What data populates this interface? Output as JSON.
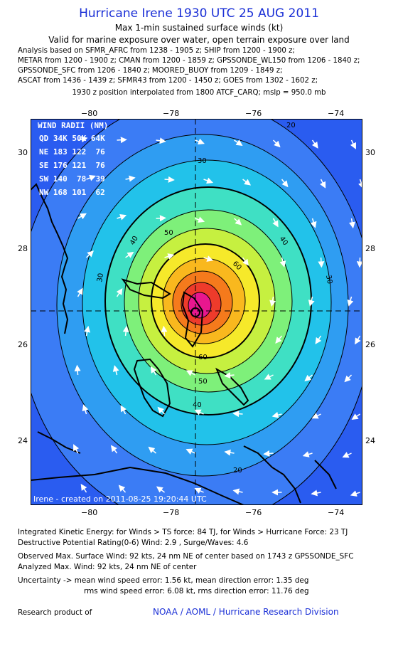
{
  "header": {
    "title": "Hurricane Irene 1930 UTC 25 AUG 2011",
    "subtitle": "Max 1-min sustained surface winds (kt)",
    "valid": "Valid for marine exposure over water, open terrain exposure over land"
  },
  "analysis_lines": [
    "Analysis based on SFMR_AFRC from 1238 - 1905 z; SHIP from 1200 - 1900 z;",
    "METAR from 1200 - 1900 z; CMAN from 1200 - 1859 z; GPSSONDE_WL150 from 1206 - 1840 z;",
    "GPSSONDE_SFC from 1206 - 1840 z; MOORED_BUOY from 1209 - 1849 z;",
    "ASCAT from 1436 - 1439 z; SFMR43 from 1200 - 1450 z; GOES from 1302 - 1602 z;"
  ],
  "interp_note": "1930 z position interpolated from 1800 ATCF_CARQ; mslp = 950.0 mb",
  "map": {
    "lon_ticks": [
      "−80",
      "−78",
      "−76",
      "−74"
    ],
    "lat_ticks": [
      "30",
      "28",
      "26",
      "24"
    ],
    "wind_radii": {
      "title": "WIND RADII (NM)",
      "header": "QD 34K 50K 64K",
      "rows": [
        "NE 183 122  76",
        "SE 176 121  76",
        "SW 140  78  39",
        "NW 168 101  62"
      ]
    },
    "contour_labels": [
      "20",
      "20",
      "30",
      "30",
      "30",
      "40",
      "40",
      "40",
      "50",
      "50",
      "60",
      "60"
    ],
    "credit": "Irene - created on 2011-08-25 19:20:44 UTC",
    "colors": {
      "ocean": "#2a5cf0",
      "land": "#000000",
      "levels": [
        "#3b7cf5",
        "#2f9df2",
        "#22c2ea",
        "#3fe0c4",
        "#7ef07a",
        "#c6f040",
        "#f6e92a",
        "#f9b81e",
        "#f57a1c",
        "#ee3b2b",
        "#e8178f"
      ]
    }
  },
  "footer": {
    "ike": "Integrated Kinetic Energy:  for Winds > TS force: 84 TJ,  for Winds > Hurricane Force: 23 TJ",
    "dpr": "Destructive Potential Rating(0-6)   Wind: 2.9 , Surge/Waves: 4.6",
    "obs": "Observed Max. Surface Wind: 92 kts, 24 nm NE of center based on 1743 z GPSSONDE_SFC",
    "analyzed": "Analyzed Max. Wind: 92 kts, 24 nm NE of center",
    "unc1": "Uncertainty -> mean wind speed error: 1.56 kt,   mean direction error: 1.35 deg",
    "unc2": "rms wind speed error: 6.08 kt,   rms direction error: 11.76 deg",
    "research": "Research product of",
    "org": "NOAA / AOML / Hurricane Research Division"
  }
}
